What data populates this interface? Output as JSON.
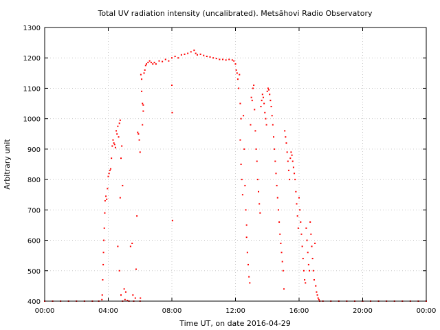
{
  "chart_data": {
    "type": "scatter",
    "title": "Total UV radiation intensity (uncalibrated). Metsähovi Radio Observatory",
    "xlabel": "Time UT, on date 2016-04-29",
    "ylabel": "Arbitrary unit",
    "x_unit": "hours UT",
    "xlim": [
      0,
      24
    ],
    "ylim": [
      400,
      1300
    ],
    "x_ticks": [
      {
        "value": 0,
        "label": "00:00"
      },
      {
        "value": 4,
        "label": "04:00"
      },
      {
        "value": 8,
        "label": "08:00"
      },
      {
        "value": 12,
        "label": "12:00"
      },
      {
        "value": 16,
        "label": "16:00"
      },
      {
        "value": 20,
        "label": "20:00"
      },
      {
        "value": 24,
        "label": "00:00"
      }
    ],
    "y_ticks": [
      400,
      500,
      600,
      700,
      800,
      900,
      1000,
      1100,
      1200,
      1300
    ],
    "grid": true,
    "grid_style": "dotted",
    "marker_color": "#ff0000",
    "series": [
      {
        "color": "#ff0000",
        "points": [
          {
            "x": 0.0,
            "y": 400
          },
          {
            "x": 0.5,
            "y": 400
          },
          {
            "x": 1.0,
            "y": 400
          },
          {
            "x": 1.5,
            "y": 400
          },
          {
            "x": 2.0,
            "y": 400
          },
          {
            "x": 2.5,
            "y": 400
          },
          {
            "x": 3.0,
            "y": 400
          },
          {
            "x": 3.4,
            "y": 400
          },
          {
            "x": 3.6,
            "y": 405
          },
          {
            "x": 3.62,
            "y": 420
          },
          {
            "x": 3.65,
            "y": 470
          },
          {
            "x": 3.68,
            "y": 520
          },
          {
            "x": 3.7,
            "y": 560
          },
          {
            "x": 3.72,
            "y": 600
          },
          {
            "x": 3.75,
            "y": 640
          },
          {
            "x": 3.78,
            "y": 690
          },
          {
            "x": 3.8,
            "y": 730
          },
          {
            "x": 3.85,
            "y": 745
          },
          {
            "x": 3.9,
            "y": 735
          },
          {
            "x": 3.95,
            "y": 770
          },
          {
            "x": 4.0,
            "y": 810
          },
          {
            "x": 4.05,
            "y": 820
          },
          {
            "x": 4.1,
            "y": 830
          },
          {
            "x": 4.15,
            "y": 835
          },
          {
            "x": 4.2,
            "y": 870
          },
          {
            "x": 4.25,
            "y": 910
          },
          {
            "x": 4.3,
            "y": 930
          },
          {
            "x": 4.35,
            "y": 920
          },
          {
            "x": 4.4,
            "y": 915
          },
          {
            "x": 4.45,
            "y": 905
          },
          {
            "x": 4.5,
            "y": 960
          },
          {
            "x": 4.55,
            "y": 950
          },
          {
            "x": 4.6,
            "y": 975
          },
          {
            "x": 4.65,
            "y": 940
          },
          {
            "x": 4.7,
            "y": 985
          },
          {
            "x": 4.75,
            "y": 995
          },
          {
            "x": 4.8,
            "y": 870
          },
          {
            "x": 4.85,
            "y": 910
          },
          {
            "x": 4.6,
            "y": 580
          },
          {
            "x": 4.7,
            "y": 500
          },
          {
            "x": 4.75,
            "y": 740
          },
          {
            "x": 4.9,
            "y": 780
          },
          {
            "x": 4.8,
            "y": 420
          },
          {
            "x": 5.0,
            "y": 440
          },
          {
            "x": 5.1,
            "y": 430
          },
          {
            "x": 4.9,
            "y": 400
          },
          {
            "x": 5.05,
            "y": 405
          },
          {
            "x": 5.2,
            "y": 402
          },
          {
            "x": 5.3,
            "y": 400
          },
          {
            "x": 5.4,
            "y": 580
          },
          {
            "x": 5.5,
            "y": 590
          },
          {
            "x": 5.55,
            "y": 420
          },
          {
            "x": 5.6,
            "y": 400
          },
          {
            "x": 5.7,
            "y": 410
          },
          {
            "x": 5.75,
            "y": 505
          },
          {
            "x": 5.8,
            "y": 680
          },
          {
            "x": 5.85,
            "y": 955
          },
          {
            "x": 5.9,
            "y": 950
          },
          {
            "x": 5.95,
            "y": 930
          },
          {
            "x": 6.0,
            "y": 890
          },
          {
            "x": 6.0,
            "y": 400
          },
          {
            "x": 6.02,
            "y": 410
          },
          {
            "x": 6.05,
            "y": 1145
          },
          {
            "x": 6.1,
            "y": 1130
          },
          {
            "x": 6.1,
            "y": 1090
          },
          {
            "x": 6.15,
            "y": 1050
          },
          {
            "x": 6.15,
            "y": 980
          },
          {
            "x": 6.2,
            "y": 1045
          },
          {
            "x": 6.2,
            "y": 1025
          },
          {
            "x": 6.25,
            "y": 1150
          },
          {
            "x": 6.3,
            "y": 1160
          },
          {
            "x": 6.35,
            "y": 1175
          },
          {
            "x": 6.4,
            "y": 1180
          },
          {
            "x": 6.5,
            "y": 1185
          },
          {
            "x": 6.6,
            "y": 1190
          },
          {
            "x": 6.7,
            "y": 1185
          },
          {
            "x": 6.8,
            "y": 1180
          },
          {
            "x": 6.9,
            "y": 1185
          },
          {
            "x": 7.0,
            "y": 1180
          },
          {
            "x": 7.2,
            "y": 1190
          },
          {
            "x": 7.4,
            "y": 1188
          },
          {
            "x": 7.6,
            "y": 1195
          },
          {
            "x": 7.8,
            "y": 1190
          },
          {
            "x": 8.0,
            "y": 1200
          },
          {
            "x": 8.0,
            "y": 1110
          },
          {
            "x": 8.02,
            "y": 1020
          },
          {
            "x": 8.04,
            "y": 665
          },
          {
            "x": 8.2,
            "y": 1205
          },
          {
            "x": 8.4,
            "y": 1200
          },
          {
            "x": 8.6,
            "y": 1210
          },
          {
            "x": 8.8,
            "y": 1212
          },
          {
            "x": 9.0,
            "y": 1215
          },
          {
            "x": 9.2,
            "y": 1220
          },
          {
            "x": 9.4,
            "y": 1225
          },
          {
            "x": 9.5,
            "y": 1215
          },
          {
            "x": 9.6,
            "y": 1210
          },
          {
            "x": 9.8,
            "y": 1212
          },
          {
            "x": 10.0,
            "y": 1208
          },
          {
            "x": 10.2,
            "y": 1205
          },
          {
            "x": 10.4,
            "y": 1203
          },
          {
            "x": 10.6,
            "y": 1200
          },
          {
            "x": 10.8,
            "y": 1198
          },
          {
            "x": 11.0,
            "y": 1195
          },
          {
            "x": 11.2,
            "y": 1195
          },
          {
            "x": 11.4,
            "y": 1193
          },
          {
            "x": 11.6,
            "y": 1195
          },
          {
            "x": 11.8,
            "y": 1193
          },
          {
            "x": 11.9,
            "y": 1190
          },
          {
            "x": 12.0,
            "y": 1180
          },
          {
            "x": 12.05,
            "y": 1160
          },
          {
            "x": 12.1,
            "y": 1150
          },
          {
            "x": 12.15,
            "y": 1130
          },
          {
            "x": 12.2,
            "y": 1100
          },
          {
            "x": 12.25,
            "y": 1145
          },
          {
            "x": 12.3,
            "y": 1050
          },
          {
            "x": 12.35,
            "y": 1000
          },
          {
            "x": 12.3,
            "y": 930
          },
          {
            "x": 12.35,
            "y": 850
          },
          {
            "x": 12.4,
            "y": 800
          },
          {
            "x": 12.45,
            "y": 750
          },
          {
            "x": 12.5,
            "y": 1010
          },
          {
            "x": 12.55,
            "y": 900
          },
          {
            "x": 12.6,
            "y": 780
          },
          {
            "x": 12.65,
            "y": 700
          },
          {
            "x": 12.7,
            "y": 650
          },
          {
            "x": 12.7,
            "y": 610
          },
          {
            "x": 12.75,
            "y": 560
          },
          {
            "x": 12.8,
            "y": 520
          },
          {
            "x": 12.85,
            "y": 480
          },
          {
            "x": 12.9,
            "y": 460
          },
          {
            "x": 12.95,
            "y": 980
          },
          {
            "x": 13.0,
            "y": 1070
          },
          {
            "x": 13.05,
            "y": 1060
          },
          {
            "x": 13.1,
            "y": 1100
          },
          {
            "x": 13.15,
            "y": 1110
          },
          {
            "x": 13.2,
            "y": 1030
          },
          {
            "x": 13.25,
            "y": 960
          },
          {
            "x": 13.3,
            "y": 900
          },
          {
            "x": 13.35,
            "y": 860
          },
          {
            "x": 13.4,
            "y": 800
          },
          {
            "x": 13.45,
            "y": 760
          },
          {
            "x": 13.5,
            "y": 720
          },
          {
            "x": 13.55,
            "y": 690
          },
          {
            "x": 13.6,
            "y": 1040
          },
          {
            "x": 13.65,
            "y": 1060
          },
          {
            "x": 13.7,
            "y": 1080
          },
          {
            "x": 13.75,
            "y": 1070
          },
          {
            "x": 13.8,
            "y": 1050
          },
          {
            "x": 13.85,
            "y": 1020
          },
          {
            "x": 13.9,
            "y": 1000
          },
          {
            "x": 13.95,
            "y": 980
          },
          {
            "x": 14.0,
            "y": 1090
          },
          {
            "x": 14.05,
            "y": 1100
          },
          {
            "x": 14.1,
            "y": 1095
          },
          {
            "x": 14.15,
            "y": 1080
          },
          {
            "x": 14.2,
            "y": 1060
          },
          {
            "x": 14.25,
            "y": 1040
          },
          {
            "x": 14.3,
            "y": 1010
          },
          {
            "x": 14.35,
            "y": 980
          },
          {
            "x": 14.4,
            "y": 940
          },
          {
            "x": 14.45,
            "y": 900
          },
          {
            "x": 14.5,
            "y": 860
          },
          {
            "x": 14.55,
            "y": 820
          },
          {
            "x": 14.6,
            "y": 780
          },
          {
            "x": 14.65,
            "y": 740
          },
          {
            "x": 14.7,
            "y": 700
          },
          {
            "x": 14.75,
            "y": 660
          },
          {
            "x": 14.8,
            "y": 620
          },
          {
            "x": 14.85,
            "y": 590
          },
          {
            "x": 14.9,
            "y": 560
          },
          {
            "x": 14.95,
            "y": 530
          },
          {
            "x": 15.0,
            "y": 500
          },
          {
            "x": 15.05,
            "y": 440
          },
          {
            "x": 15.1,
            "y": 960
          },
          {
            "x": 15.15,
            "y": 940
          },
          {
            "x": 15.2,
            "y": 920
          },
          {
            "x": 15.25,
            "y": 890
          },
          {
            "x": 15.3,
            "y": 860
          },
          {
            "x": 15.35,
            "y": 830
          },
          {
            "x": 15.4,
            "y": 800
          },
          {
            "x": 15.45,
            "y": 870
          },
          {
            "x": 15.5,
            "y": 890
          },
          {
            "x": 15.55,
            "y": 880
          },
          {
            "x": 15.6,
            "y": 860
          },
          {
            "x": 15.65,
            "y": 840
          },
          {
            "x": 15.7,
            "y": 820
          },
          {
            "x": 15.75,
            "y": 800
          },
          {
            "x": 15.8,
            "y": 760
          },
          {
            "x": 15.85,
            "y": 720
          },
          {
            "x": 15.9,
            "y": 680
          },
          {
            "x": 15.95,
            "y": 640
          },
          {
            "x": 16.0,
            "y": 740
          },
          {
            "x": 16.05,
            "y": 700
          },
          {
            "x": 16.1,
            "y": 660
          },
          {
            "x": 16.15,
            "y": 620
          },
          {
            "x": 16.2,
            "y": 580
          },
          {
            "x": 16.25,
            "y": 540
          },
          {
            "x": 16.3,
            "y": 500
          },
          {
            "x": 16.35,
            "y": 470
          },
          {
            "x": 16.4,
            "y": 460
          },
          {
            "x": 16.45,
            "y": 640
          },
          {
            "x": 16.5,
            "y": 600
          },
          {
            "x": 16.55,
            "y": 560
          },
          {
            "x": 16.6,
            "y": 520
          },
          {
            "x": 16.65,
            "y": 500
          },
          {
            "x": 16.7,
            "y": 660
          },
          {
            "x": 16.75,
            "y": 620
          },
          {
            "x": 16.8,
            "y": 580
          },
          {
            "x": 16.85,
            "y": 540
          },
          {
            "x": 16.9,
            "y": 500
          },
          {
            "x": 16.95,
            "y": 470
          },
          {
            "x": 17.0,
            "y": 590
          },
          {
            "x": 17.05,
            "y": 450
          },
          {
            "x": 17.1,
            "y": 430
          },
          {
            "x": 17.15,
            "y": 420
          },
          {
            "x": 17.2,
            "y": 410
          },
          {
            "x": 17.25,
            "y": 405
          },
          {
            "x": 17.3,
            "y": 400
          },
          {
            "x": 17.5,
            "y": 400
          },
          {
            "x": 18.0,
            "y": 400
          },
          {
            "x": 18.5,
            "y": 400
          },
          {
            "x": 19.0,
            "y": 400
          },
          {
            "x": 19.5,
            "y": 400
          },
          {
            "x": 20.0,
            "y": 400
          },
          {
            "x": 20.5,
            "y": 400
          },
          {
            "x": 21.0,
            "y": 400
          },
          {
            "x": 21.5,
            "y": 400
          },
          {
            "x": 22.0,
            "y": 400
          },
          {
            "x": 22.5,
            "y": 400
          },
          {
            "x": 23.0,
            "y": 400
          },
          {
            "x": 23.5,
            "y": 400
          },
          {
            "x": 24.0,
            "y": 400
          }
        ]
      }
    ]
  }
}
